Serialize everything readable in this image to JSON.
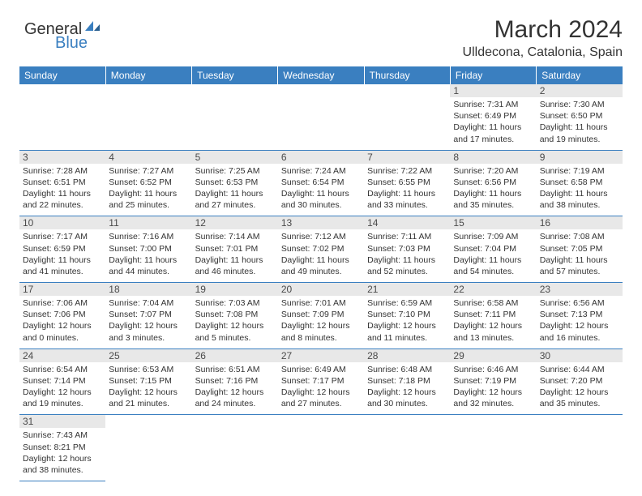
{
  "logo": {
    "text1": "General",
    "text2": "Blue"
  },
  "header": {
    "title": "March 2024",
    "location": "Ulldecona, Catalonia, Spain"
  },
  "colors": {
    "header_bg": "#3a7fc0",
    "daynum_bg": "#e8e8e8",
    "border": "#3a7fc0"
  },
  "weekdays": [
    "Sunday",
    "Monday",
    "Tuesday",
    "Wednesday",
    "Thursday",
    "Friday",
    "Saturday"
  ],
  "cells": [
    [
      null,
      null,
      null,
      null,
      null,
      {
        "n": "1",
        "sr": "Sunrise: 7:31 AM",
        "ss": "Sunset: 6:49 PM",
        "dl": "Daylight: 11 hours and 17 minutes."
      },
      {
        "n": "2",
        "sr": "Sunrise: 7:30 AM",
        "ss": "Sunset: 6:50 PM",
        "dl": "Daylight: 11 hours and 19 minutes."
      }
    ],
    [
      {
        "n": "3",
        "sr": "Sunrise: 7:28 AM",
        "ss": "Sunset: 6:51 PM",
        "dl": "Daylight: 11 hours and 22 minutes."
      },
      {
        "n": "4",
        "sr": "Sunrise: 7:27 AM",
        "ss": "Sunset: 6:52 PM",
        "dl": "Daylight: 11 hours and 25 minutes."
      },
      {
        "n": "5",
        "sr": "Sunrise: 7:25 AM",
        "ss": "Sunset: 6:53 PM",
        "dl": "Daylight: 11 hours and 27 minutes."
      },
      {
        "n": "6",
        "sr": "Sunrise: 7:24 AM",
        "ss": "Sunset: 6:54 PM",
        "dl": "Daylight: 11 hours and 30 minutes."
      },
      {
        "n": "7",
        "sr": "Sunrise: 7:22 AM",
        "ss": "Sunset: 6:55 PM",
        "dl": "Daylight: 11 hours and 33 minutes."
      },
      {
        "n": "8",
        "sr": "Sunrise: 7:20 AM",
        "ss": "Sunset: 6:56 PM",
        "dl": "Daylight: 11 hours and 35 minutes."
      },
      {
        "n": "9",
        "sr": "Sunrise: 7:19 AM",
        "ss": "Sunset: 6:58 PM",
        "dl": "Daylight: 11 hours and 38 minutes."
      }
    ],
    [
      {
        "n": "10",
        "sr": "Sunrise: 7:17 AM",
        "ss": "Sunset: 6:59 PM",
        "dl": "Daylight: 11 hours and 41 minutes."
      },
      {
        "n": "11",
        "sr": "Sunrise: 7:16 AM",
        "ss": "Sunset: 7:00 PM",
        "dl": "Daylight: 11 hours and 44 minutes."
      },
      {
        "n": "12",
        "sr": "Sunrise: 7:14 AM",
        "ss": "Sunset: 7:01 PM",
        "dl": "Daylight: 11 hours and 46 minutes."
      },
      {
        "n": "13",
        "sr": "Sunrise: 7:12 AM",
        "ss": "Sunset: 7:02 PM",
        "dl": "Daylight: 11 hours and 49 minutes."
      },
      {
        "n": "14",
        "sr": "Sunrise: 7:11 AM",
        "ss": "Sunset: 7:03 PM",
        "dl": "Daylight: 11 hours and 52 minutes."
      },
      {
        "n": "15",
        "sr": "Sunrise: 7:09 AM",
        "ss": "Sunset: 7:04 PM",
        "dl": "Daylight: 11 hours and 54 minutes."
      },
      {
        "n": "16",
        "sr": "Sunrise: 7:08 AM",
        "ss": "Sunset: 7:05 PM",
        "dl": "Daylight: 11 hours and 57 minutes."
      }
    ],
    [
      {
        "n": "17",
        "sr": "Sunrise: 7:06 AM",
        "ss": "Sunset: 7:06 PM",
        "dl": "Daylight: 12 hours and 0 minutes."
      },
      {
        "n": "18",
        "sr": "Sunrise: 7:04 AM",
        "ss": "Sunset: 7:07 PM",
        "dl": "Daylight: 12 hours and 3 minutes."
      },
      {
        "n": "19",
        "sr": "Sunrise: 7:03 AM",
        "ss": "Sunset: 7:08 PM",
        "dl": "Daylight: 12 hours and 5 minutes."
      },
      {
        "n": "20",
        "sr": "Sunrise: 7:01 AM",
        "ss": "Sunset: 7:09 PM",
        "dl": "Daylight: 12 hours and 8 minutes."
      },
      {
        "n": "21",
        "sr": "Sunrise: 6:59 AM",
        "ss": "Sunset: 7:10 PM",
        "dl": "Daylight: 12 hours and 11 minutes."
      },
      {
        "n": "22",
        "sr": "Sunrise: 6:58 AM",
        "ss": "Sunset: 7:11 PM",
        "dl": "Daylight: 12 hours and 13 minutes."
      },
      {
        "n": "23",
        "sr": "Sunrise: 6:56 AM",
        "ss": "Sunset: 7:13 PM",
        "dl": "Daylight: 12 hours and 16 minutes."
      }
    ],
    [
      {
        "n": "24",
        "sr": "Sunrise: 6:54 AM",
        "ss": "Sunset: 7:14 PM",
        "dl": "Daylight: 12 hours and 19 minutes."
      },
      {
        "n": "25",
        "sr": "Sunrise: 6:53 AM",
        "ss": "Sunset: 7:15 PM",
        "dl": "Daylight: 12 hours and 21 minutes."
      },
      {
        "n": "26",
        "sr": "Sunrise: 6:51 AM",
        "ss": "Sunset: 7:16 PM",
        "dl": "Daylight: 12 hours and 24 minutes."
      },
      {
        "n": "27",
        "sr": "Sunrise: 6:49 AM",
        "ss": "Sunset: 7:17 PM",
        "dl": "Daylight: 12 hours and 27 minutes."
      },
      {
        "n": "28",
        "sr": "Sunrise: 6:48 AM",
        "ss": "Sunset: 7:18 PM",
        "dl": "Daylight: 12 hours and 30 minutes."
      },
      {
        "n": "29",
        "sr": "Sunrise: 6:46 AM",
        "ss": "Sunset: 7:19 PM",
        "dl": "Daylight: 12 hours and 32 minutes."
      },
      {
        "n": "30",
        "sr": "Sunrise: 6:44 AM",
        "ss": "Sunset: 7:20 PM",
        "dl": "Daylight: 12 hours and 35 minutes."
      }
    ],
    [
      {
        "n": "31",
        "sr": "Sunrise: 7:43 AM",
        "ss": "Sunset: 8:21 PM",
        "dl": "Daylight: 12 hours and 38 minutes."
      },
      null,
      null,
      null,
      null,
      null,
      null
    ]
  ]
}
